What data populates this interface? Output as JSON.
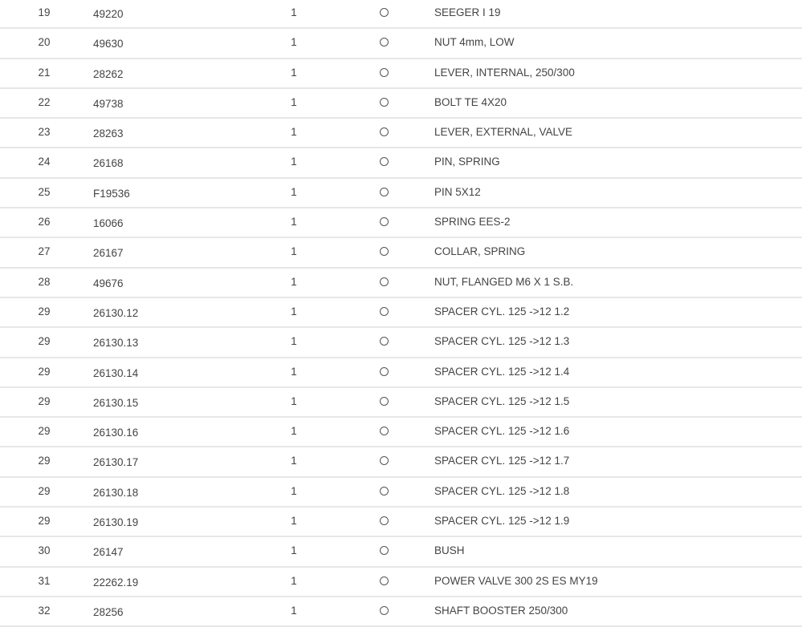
{
  "parts_table": {
    "rows": [
      {
        "pos": "19",
        "part": "49220",
        "qty": "1",
        "desc": "SEEGER I 19"
      },
      {
        "pos": "20",
        "part": "49630",
        "qty": "1",
        "desc": "NUT 4mm, LOW"
      },
      {
        "pos": "21",
        "part": "28262",
        "qty": "1",
        "desc": "LEVER, INTERNAL, 250/300"
      },
      {
        "pos": "22",
        "part": "49738",
        "qty": "1",
        "desc": "BOLT TE 4X20"
      },
      {
        "pos": "23",
        "part": "28263",
        "qty": "1",
        "desc": "LEVER, EXTERNAL, VALVE"
      },
      {
        "pos": "24",
        "part": "26168",
        "qty": "1",
        "desc": "PIN, SPRING"
      },
      {
        "pos": "25",
        "part": "F19536",
        "qty": "1",
        "desc": "PIN 5X12"
      },
      {
        "pos": "26",
        "part": "16066",
        "qty": "1",
        "desc": "SPRING EES-2"
      },
      {
        "pos": "27",
        "part": "26167",
        "qty": "1",
        "desc": "COLLAR, SPRING"
      },
      {
        "pos": "28",
        "part": "49676",
        "qty": "1",
        "desc": "NUT, FLANGED M6 X 1 S.B."
      },
      {
        "pos": "29",
        "part": "26130.12",
        "qty": "1",
        "desc": "SPACER CYL. 125 ->12 1.2"
      },
      {
        "pos": "29",
        "part": "26130.13",
        "qty": "1",
        "desc": "SPACER CYL. 125 ->12 1.3"
      },
      {
        "pos": "29",
        "part": "26130.14",
        "qty": "1",
        "desc": "SPACER CYL. 125 ->12 1.4"
      },
      {
        "pos": "29",
        "part": "26130.15",
        "qty": "1",
        "desc": "SPACER CYL. 125 ->12 1.5"
      },
      {
        "pos": "29",
        "part": "26130.16",
        "qty": "1",
        "desc": "SPACER CYL. 125 ->12 1.6"
      },
      {
        "pos": "29",
        "part": "26130.17",
        "qty": "1",
        "desc": "SPACER CYL. 125 ->12 1.7"
      },
      {
        "pos": "29",
        "part": "26130.18",
        "qty": "1",
        "desc": "SPACER CYL. 125 ->12 1.8"
      },
      {
        "pos": "29",
        "part": "26130.19",
        "qty": "1",
        "desc": "SPACER CYL. 125 ->12 1.9"
      },
      {
        "pos": "30",
        "part": "26147",
        "qty": "1",
        "desc": "BUSH"
      },
      {
        "pos": "31",
        "part": "22262.19",
        "qty": "1",
        "desc": "POWER VALVE 300 2S ES MY19"
      },
      {
        "pos": "32",
        "part": "28256",
        "qty": "1",
        "desc": "SHAFT BOOSTER 250/300"
      }
    ]
  }
}
